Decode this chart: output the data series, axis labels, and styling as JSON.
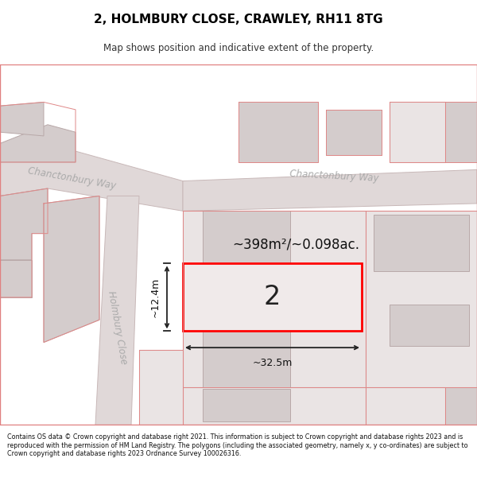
{
  "title": "2, HOLMBURY CLOSE, CRAWLEY, RH11 8TG",
  "subtitle": "Map shows position and indicative extent of the property.",
  "footer": "Contains OS data © Crown copyright and database right 2021. This information is subject to Crown copyright and database rights 2023 and is reproduced with the permission of HM Land Registry. The polygons (including the associated geometry, namely x, y co-ordinates) are subject to Crown copyright and database rights 2023 Ordnance Survey 100026316.",
  "area_text": "~398m²/~0.098ac.",
  "number_text": "2",
  "width_text": "~32.5m",
  "height_text": "~12.4m",
  "road_label_left": "Chanctonbury Way",
  "road_label_right": "Chanctonbury Way",
  "road_label_vert": "Holmbury Close",
  "map_bg": "#f7f2f2",
  "road_fill": "#e0d8d8",
  "road_ec": "#c8b8b8",
  "bld_fill": "#d4cccc",
  "bld_ec": "#b8a8a8",
  "plot_fill": "#eae4e4",
  "plot_ec": "#ccbbbb",
  "prop_fill": "#f0eaea",
  "prop_ec": "#ff0000",
  "dim_color": "#222222",
  "label_color": "#aaaaaa",
  "red_line": "#e08080"
}
